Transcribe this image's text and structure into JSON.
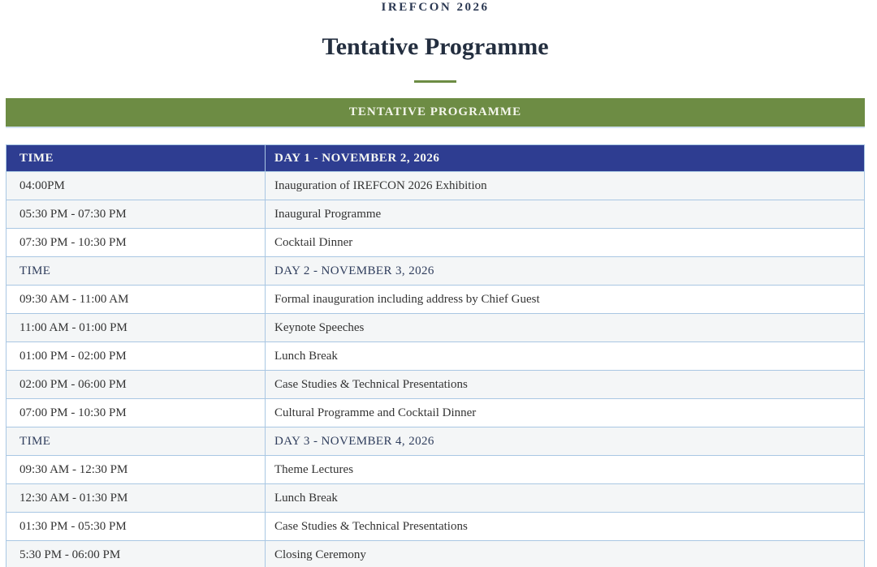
{
  "page": {
    "eyebrow": "IREFCON 2026",
    "title": "Tentative Programme"
  },
  "banner": {
    "label": "TENTATIVE PROGRAMME"
  },
  "colors": {
    "accent_green": "#6d8c44",
    "header_navy": "#2e3d91",
    "row_border_blue": "#a9c7e3",
    "shaded_row": "#f4f6f7"
  },
  "table": {
    "header": {
      "time_label": "TIME",
      "day_label": "DAY 1 - NOVEMBER 2, 2026"
    },
    "rows": [
      {
        "type": "item",
        "time": "04:00PM",
        "event": "Inauguration of IREFCON 2026 Exhibition"
      },
      {
        "type": "item",
        "time": "05:30 PM - 07:30 PM",
        "event": "Inaugural Programme"
      },
      {
        "type": "item",
        "time": "07:30 PM - 10:30 PM",
        "event": "Cocktail Dinner"
      },
      {
        "type": "subheader",
        "time": "TIME",
        "event": "DAY 2 - NOVEMBER 3, 2026"
      },
      {
        "type": "item",
        "time": "09:30 AM - 11:00 AM",
        "event": "Formal inauguration including address by Chief Guest"
      },
      {
        "type": "item",
        "time": "11:00 AM - 01:00 PM",
        "event": "Keynote Speeches"
      },
      {
        "type": "item",
        "time": "01:00 PM - 02:00 PM",
        "event": "Lunch Break"
      },
      {
        "type": "item",
        "time": "02:00 PM - 06:00 PM",
        "event": "Case Studies & Technical Presentations"
      },
      {
        "type": "item",
        "time": "07:00 PM - 10:30 PM",
        "event": "Cultural Programme and Cocktail Dinner"
      },
      {
        "type": "subheader",
        "time": "TIME",
        "event": "DAY 3 - NOVEMBER 4, 2026"
      },
      {
        "type": "item",
        "time": "09:30 AM - 12:30 PM",
        "event": "Theme Lectures"
      },
      {
        "type": "item",
        "time": "12:30 AM - 01:30 PM",
        "event": "Lunch Break"
      },
      {
        "type": "item",
        "time": "01:30 PM - 05:30 PM",
        "event": "Case Studies & Technical Presentations"
      },
      {
        "type": "item",
        "time": "5:30 PM - 06:00 PM",
        "event": "Closing Ceremony"
      }
    ]
  }
}
